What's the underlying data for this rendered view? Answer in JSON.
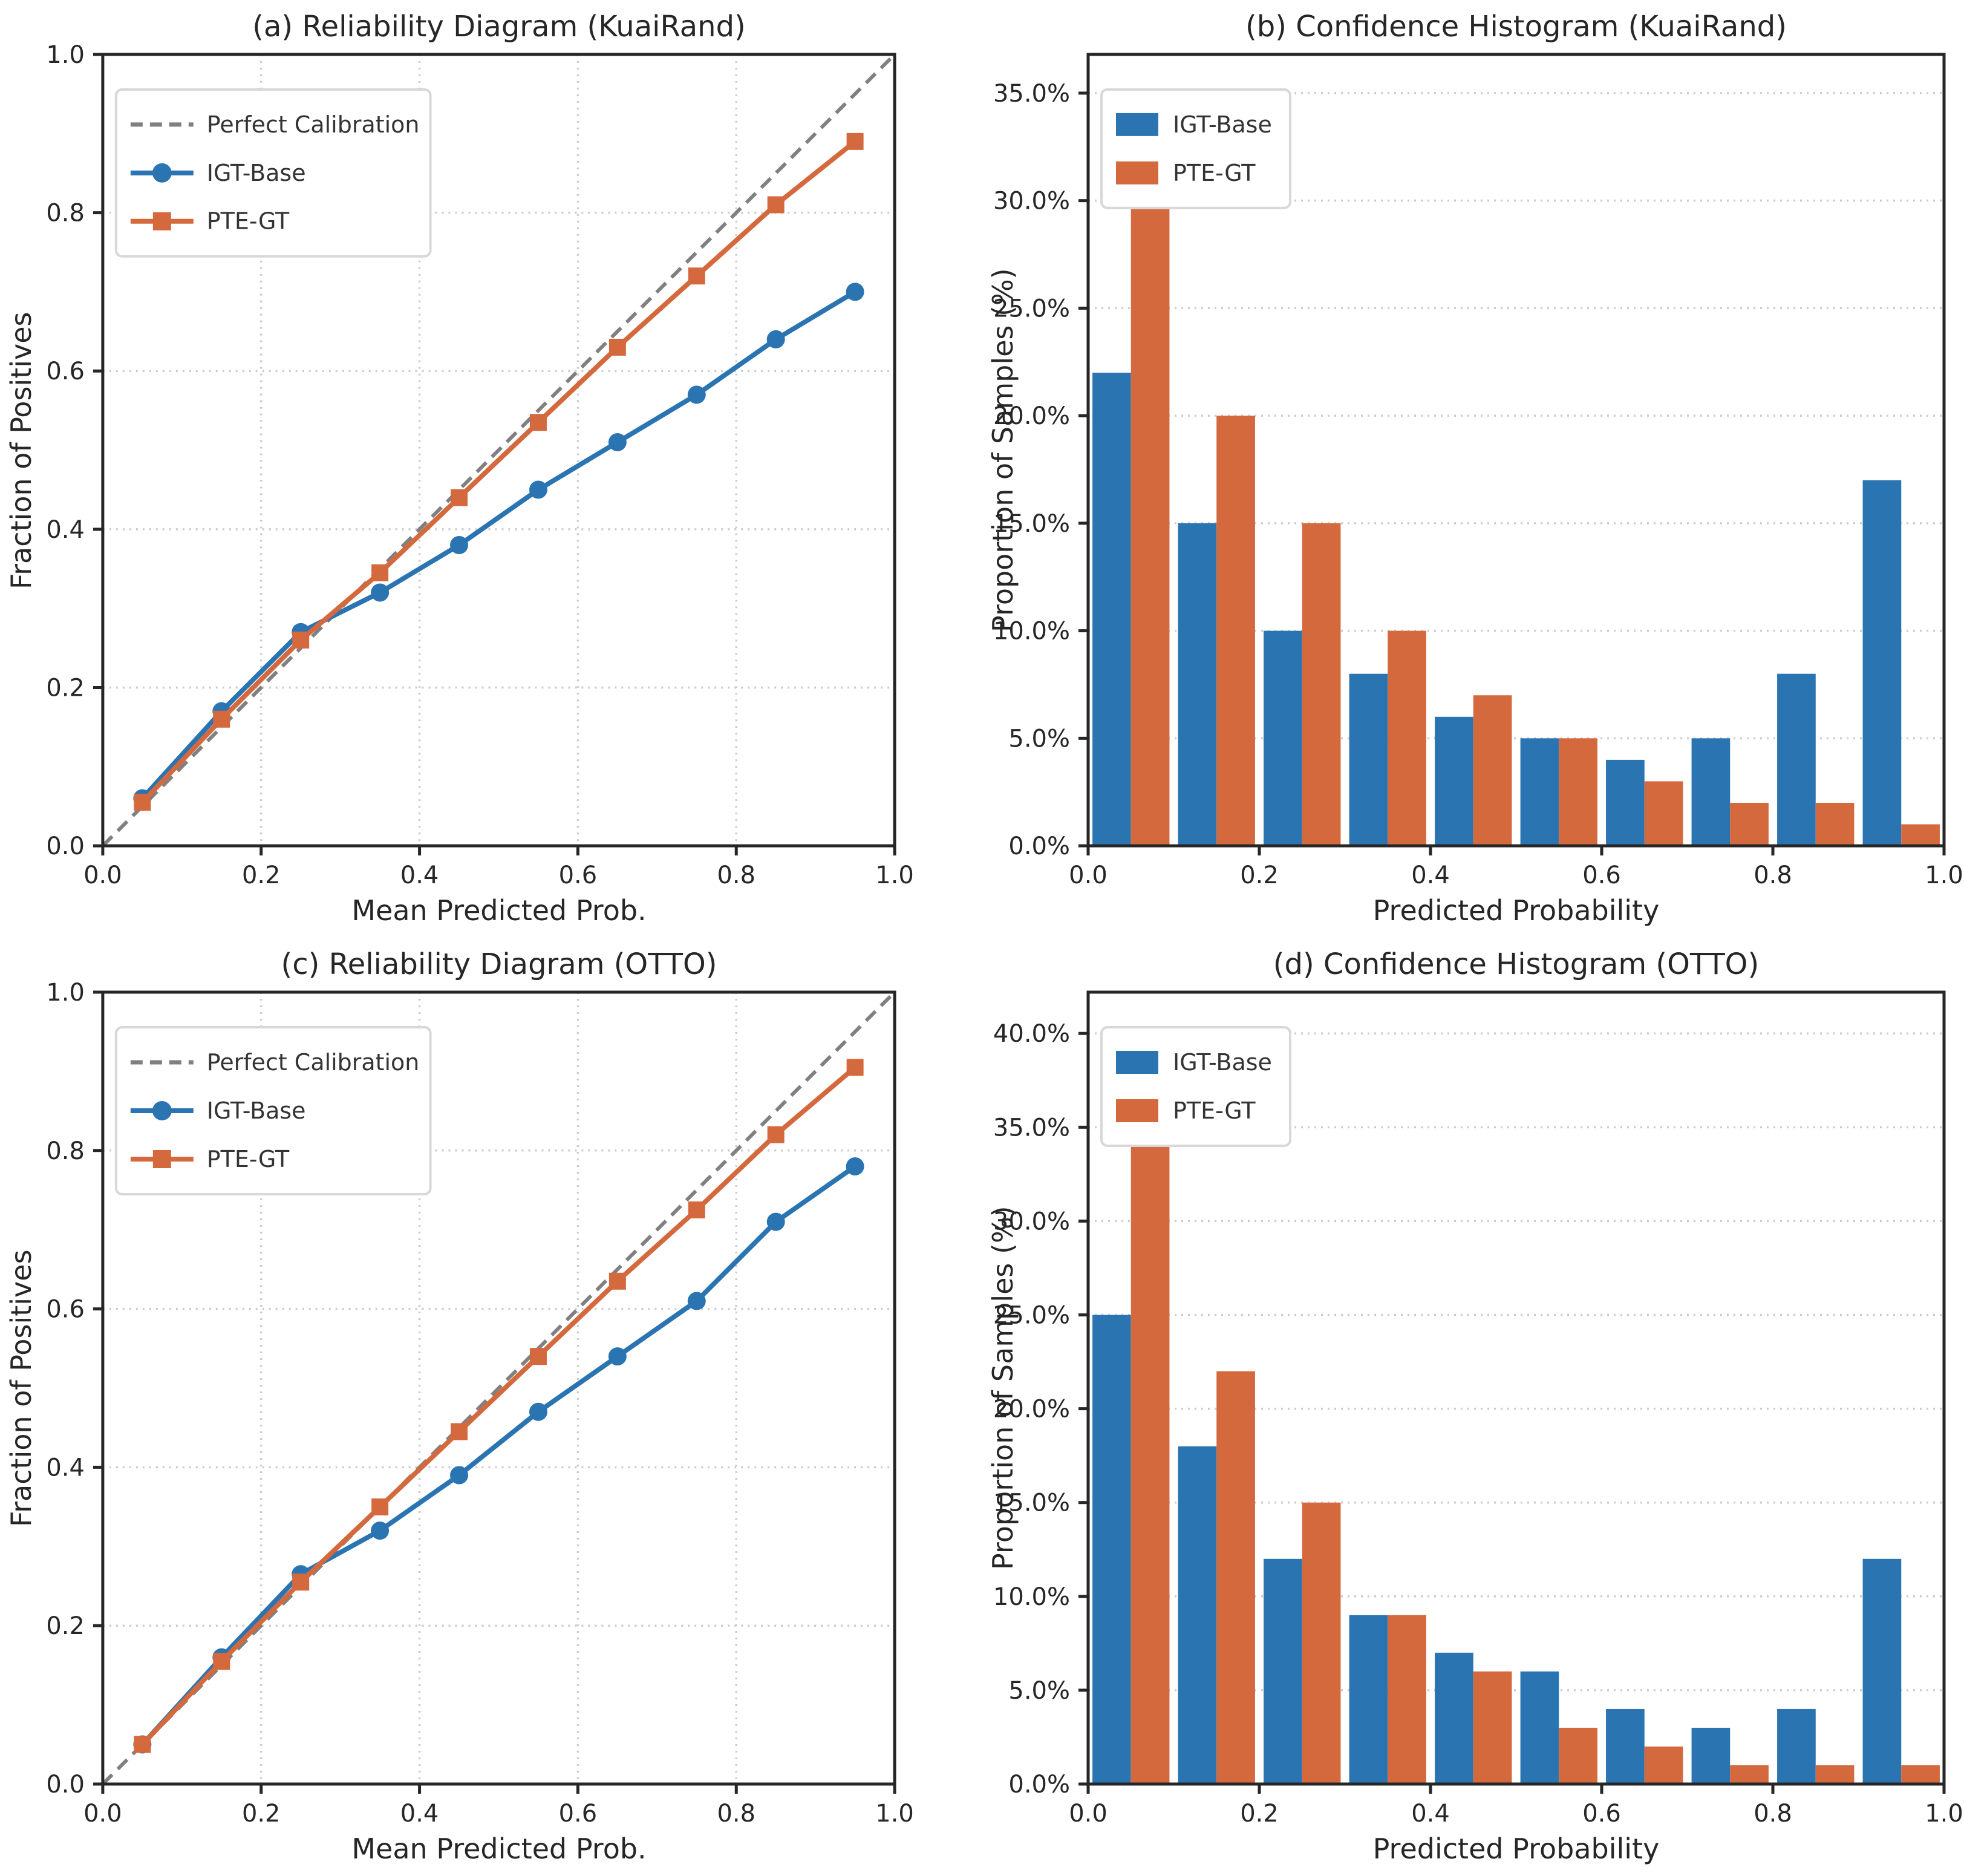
{
  "figure": {
    "background": "#FFFFFF",
    "colors": {
      "igt_base": "#2B74B2",
      "pte_gt": "#D4693E",
      "reference": "#808080",
      "grid": "#CCCCCC",
      "axis": "#262626",
      "legend_border": "#D8D8D8",
      "text": "#333333"
    }
  },
  "chart_data": [
    {
      "id": "a",
      "type": "line",
      "title": "(a) Reliability Diagram (KuaiRand)",
      "xlabel": "Mean Predicted Prob.",
      "ylabel": "Fraction of Positives",
      "xlim": [
        0,
        1
      ],
      "ylim": [
        0,
        1
      ],
      "xticks": [
        0.0,
        0.2,
        0.4,
        0.6,
        0.8,
        1.0
      ],
      "yticks": [
        0.0,
        0.2,
        0.4,
        0.6,
        0.8,
        1.0
      ],
      "grid": "both",
      "legend_position": "upper-left",
      "reference_line": {
        "label": "Perfect Calibration",
        "from": [
          0,
          0
        ],
        "to": [
          1,
          1
        ],
        "style": "dashed"
      },
      "x": [
        0.05,
        0.15,
        0.25,
        0.35,
        0.45,
        0.55,
        0.65,
        0.75,
        0.85,
        0.95
      ],
      "series": [
        {
          "name": "IGT-Base",
          "marker": "circle",
          "color_key": "igt_base",
          "values": [
            0.06,
            0.17,
            0.27,
            0.32,
            0.38,
            0.45,
            0.51,
            0.57,
            0.64,
            0.7
          ]
        },
        {
          "name": "PTE-GT",
          "marker": "square",
          "color_key": "pte_gt",
          "values": [
            0.055,
            0.16,
            0.26,
            0.345,
            0.44,
            0.535,
            0.63,
            0.72,
            0.81,
            0.89
          ]
        }
      ]
    },
    {
      "id": "b",
      "type": "bar",
      "title": "(b) Confidence Histogram (KuaiRand)",
      "xlabel": "Predicted Probability",
      "ylabel": "Proportion of Samples (%)",
      "xlim": [
        0,
        1
      ],
      "ylim": [
        0,
        36.8
      ],
      "xticks": [
        0.0,
        0.2,
        0.4,
        0.6,
        0.8,
        1.0
      ],
      "yticks": [
        0,
        5,
        10,
        15,
        20,
        25,
        30,
        35
      ],
      "ytick_format": "percent",
      "grid": "y",
      "legend_position": "upper-left",
      "bar_width": 0.045,
      "bin_centers": [
        0.05,
        0.15,
        0.25,
        0.35,
        0.45,
        0.55,
        0.65,
        0.75,
        0.85,
        0.95
      ],
      "series": [
        {
          "name": "IGT-Base",
          "color_key": "igt_base",
          "values": [
            22,
            15,
            10,
            8,
            6,
            5,
            4,
            5,
            8,
            17
          ]
        },
        {
          "name": "PTE-GT",
          "color_key": "pte_gt",
          "values": [
            35,
            20,
            15,
            10,
            7,
            5,
            3,
            2,
            2,
            1
          ]
        }
      ]
    },
    {
      "id": "c",
      "type": "line",
      "title": "(c) Reliability Diagram (OTTO)",
      "xlabel": "Mean Predicted Prob.",
      "ylabel": "Fraction of Positives",
      "xlim": [
        0,
        1
      ],
      "ylim": [
        0,
        1
      ],
      "xticks": [
        0.0,
        0.2,
        0.4,
        0.6,
        0.8,
        1.0
      ],
      "yticks": [
        0.0,
        0.2,
        0.4,
        0.6,
        0.8,
        1.0
      ],
      "grid": "both",
      "legend_position": "upper-left",
      "reference_line": {
        "label": "Perfect Calibration",
        "from": [
          0,
          0
        ],
        "to": [
          1,
          1
        ],
        "style": "dashed"
      },
      "x": [
        0.05,
        0.15,
        0.25,
        0.35,
        0.45,
        0.55,
        0.65,
        0.75,
        0.85,
        0.95
      ],
      "series": [
        {
          "name": "IGT-Base",
          "marker": "circle",
          "color_key": "igt_base",
          "values": [
            0.05,
            0.16,
            0.265,
            0.32,
            0.39,
            0.47,
            0.54,
            0.61,
            0.71,
            0.78
          ]
        },
        {
          "name": "PTE-GT",
          "marker": "square",
          "color_key": "pte_gt",
          "values": [
            0.05,
            0.155,
            0.255,
            0.35,
            0.445,
            0.54,
            0.635,
            0.725,
            0.82,
            0.905
          ]
        }
      ]
    },
    {
      "id": "d",
      "type": "bar",
      "title": "(d) Confidence Histogram (OTTO)",
      "xlabel": "Predicted Probability",
      "ylabel": "Proportion of Samples (%)",
      "xlim": [
        0,
        1
      ],
      "ylim": [
        0,
        42.2
      ],
      "xticks": [
        0.0,
        0.2,
        0.4,
        0.6,
        0.8,
        1.0
      ],
      "yticks": [
        0,
        5,
        10,
        15,
        20,
        25,
        30,
        35,
        40
      ],
      "ytick_format": "percent",
      "grid": "y",
      "legend_position": "upper-left",
      "bar_width": 0.045,
      "bin_centers": [
        0.05,
        0.15,
        0.25,
        0.35,
        0.45,
        0.55,
        0.65,
        0.75,
        0.85,
        0.95
      ],
      "series": [
        {
          "name": "IGT-Base",
          "color_key": "igt_base",
          "values": [
            25,
            18,
            12,
            9,
            7,
            6,
            4,
            3,
            4,
            12
          ]
        },
        {
          "name": "PTE-GT",
          "color_key": "pte_gt",
          "values": [
            40,
            22,
            15,
            9,
            6,
            3,
            2,
            1,
            1,
            1
          ]
        }
      ]
    }
  ]
}
